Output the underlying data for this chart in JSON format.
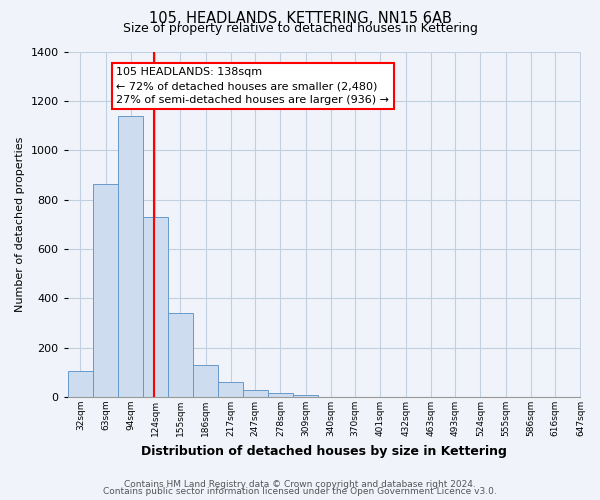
{
  "title": "105, HEADLANDS, KETTERING, NN15 6AB",
  "subtitle": "Size of property relative to detached houses in Kettering",
  "xlabel": "Distribution of detached houses by size in Kettering",
  "ylabel": "Number of detached properties",
  "bar_values": [
    105,
    865,
    1140,
    730,
    340,
    130,
    60,
    30,
    15,
    10,
    0,
    0,
    0,
    0,
    0,
    0,
    0,
    0,
    0,
    0
  ],
  "bin_labels": [
    "32sqm",
    "63sqm",
    "94sqm",
    "124sqm",
    "155sqm",
    "186sqm",
    "217sqm",
    "247sqm",
    "278sqm",
    "309sqm",
    "340sqm",
    "370sqm",
    "401sqm",
    "432sqm",
    "463sqm",
    "493sqm",
    "524sqm",
    "555sqm",
    "586sqm",
    "616sqm",
    "647sqm"
  ],
  "bin_edges": [
    32,
    63,
    94,
    124,
    155,
    186,
    217,
    247,
    278,
    309,
    340,
    370,
    401,
    432,
    463,
    493,
    524,
    555,
    586,
    616,
    647
  ],
  "bar_color": "#cddcee",
  "bar_edge_color": "#6699cc",
  "vline_x": 138,
  "vline_color": "red",
  "annotation_title": "105 HEADLANDS: 138sqm",
  "annotation_line1": "← 72% of detached houses are smaller (2,480)",
  "annotation_line2": "27% of semi-detached houses are larger (936) →",
  "annotation_box_color": "white",
  "annotation_box_edge": "red",
  "ylim": [
    0,
    1400
  ],
  "yticks": [
    0,
    200,
    400,
    600,
    800,
    1000,
    1200,
    1400
  ],
  "footer_line1": "Contains HM Land Registry data © Crown copyright and database right 2024.",
  "footer_line2": "Contains public sector information licensed under the Open Government Licence v3.0.",
  "bg_color": "#f0f4fa",
  "grid_color": "#c0d0e0"
}
